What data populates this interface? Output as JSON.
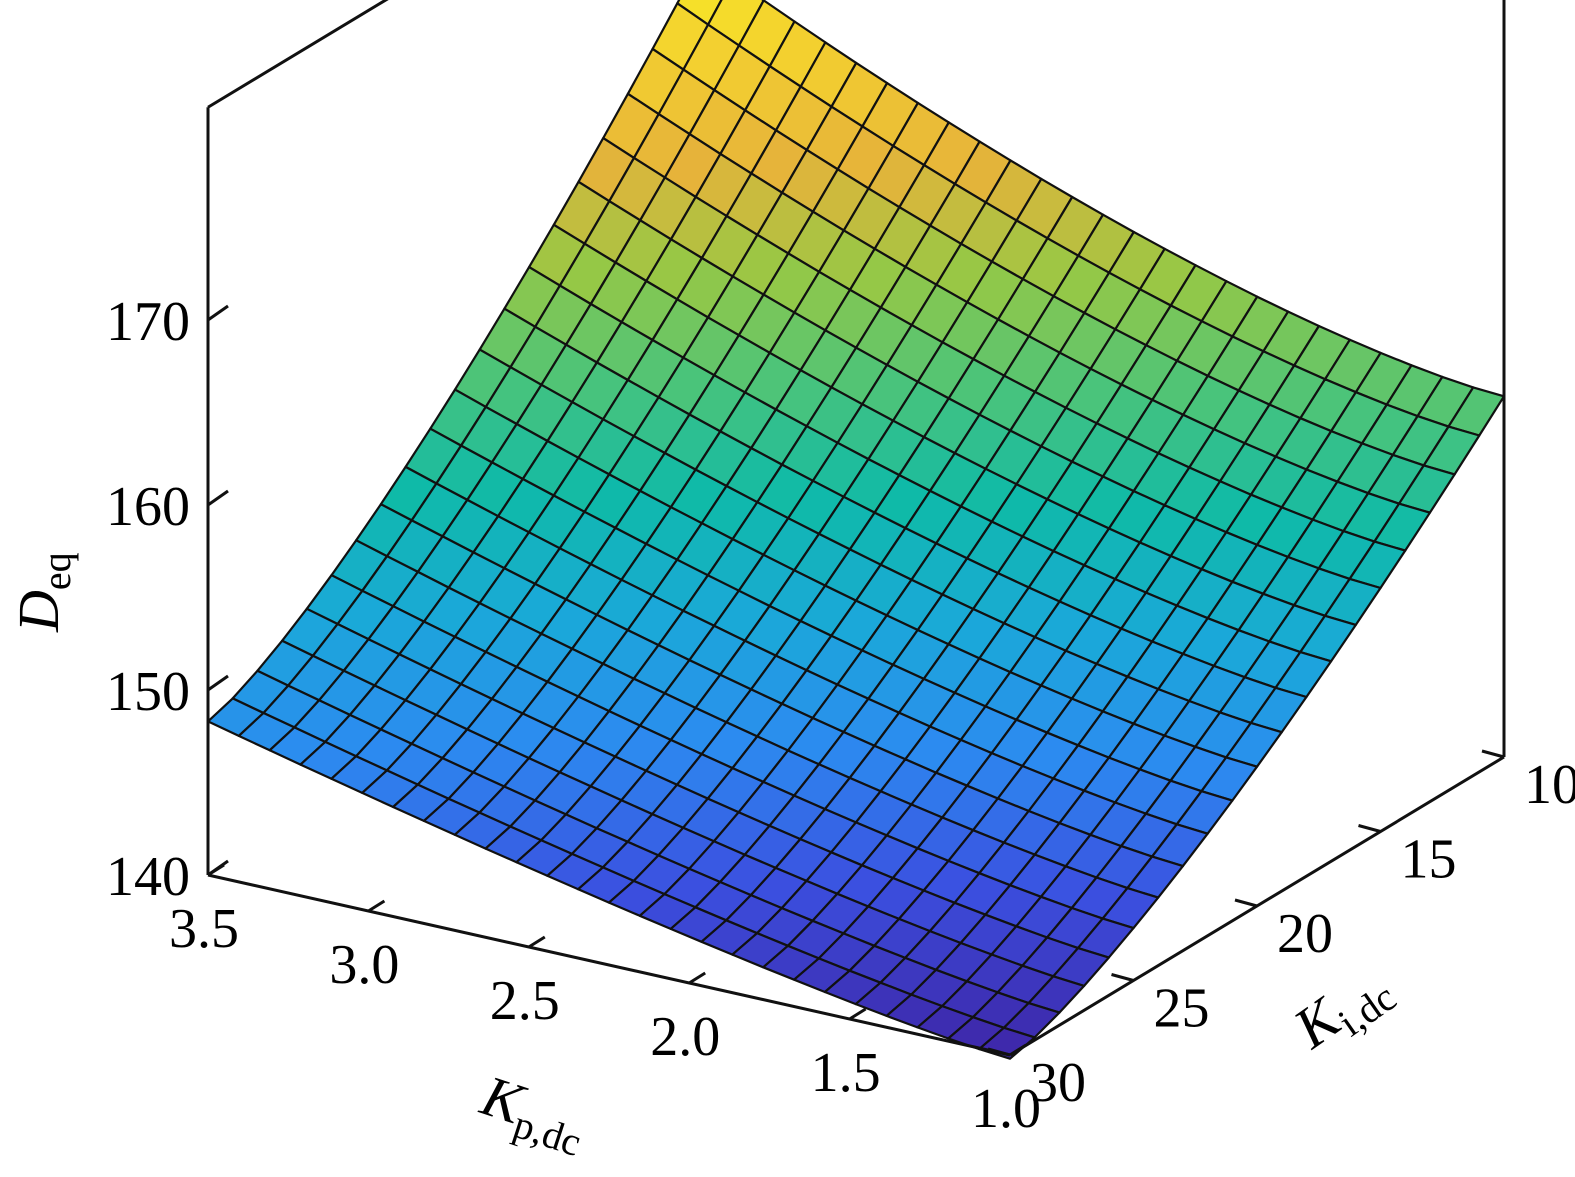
{
  "chart_data": {
    "type": "surface",
    "x": {
      "label": "K",
      "label_sub": "p,dc",
      "range": [
        1.0,
        3.5
      ],
      "ticks": [
        3.5,
        3.0,
        2.5,
        2.0,
        1.5,
        1.0
      ],
      "tick_labels": [
        "3.5",
        "3.0",
        "2.5",
        "2.0",
        "1.5",
        "1.0"
      ]
    },
    "y": {
      "label": "K",
      "label_sub": "i,dc",
      "range": [
        10,
        30
      ],
      "ticks": [
        10,
        15,
        20,
        25,
        30
      ],
      "tick_labels": [
        "10",
        "15",
        "20",
        "25",
        "30"
      ]
    },
    "z": {
      "label": "D",
      "label_sub": "eq",
      "range": [
        140,
        170
      ],
      "ticks": [
        140,
        150,
        160,
        170
      ],
      "tick_labels": [
        "140",
        "150",
        "160",
        "170"
      ]
    },
    "surface": {
      "grid_x_count": 27,
      "grid_y_count": 21,
      "corner_values": {
        "kp_3.5_ki_10": 173.5,
        "kp_1.0_ki_10": 159.5,
        "kp_3.5_ki_30": 148.3,
        "kp_1.0_ki_30": 139.8
      }
    },
    "colormap": [
      "#3e26a8",
      "#3b50e0",
      "#2c8bf0",
      "#1aa9d8",
      "#0fbaa8",
      "#4cc479",
      "#97c845",
      "#e6b33a",
      "#f3cf30",
      "#f8e825"
    ],
    "grid": false,
    "legend": "none"
  }
}
